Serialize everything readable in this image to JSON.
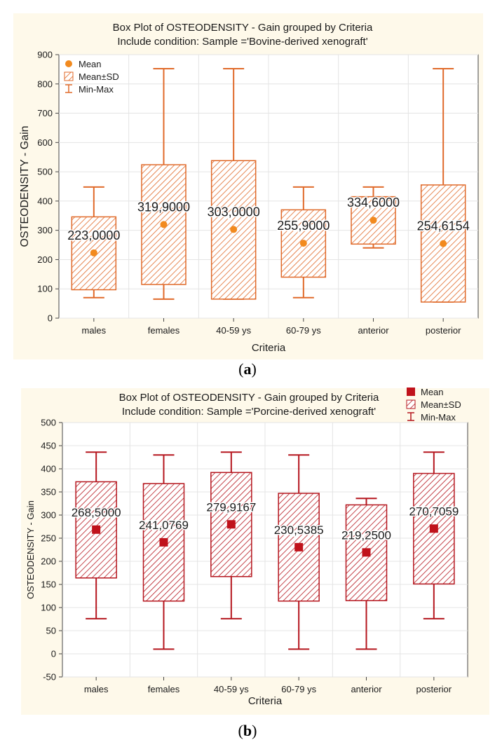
{
  "captions": {
    "a_open": "(",
    "a_letter": "a",
    "a_close": ")",
    "b_open": "(",
    "b_letter": "b",
    "b_close": ")"
  },
  "chart_data": [
    {
      "type": "box",
      "title": "Box Plot of OSTEODENSITY - Gain grouped by  Criteria",
      "subtitle": "Include condition: Sample ='Bovine-derived xenograft'",
      "xlabel": "Criteria",
      "ylabel": "OSTEODENSITY - Gain",
      "ylim": [
        0,
        900
      ],
      "yticks": [
        "0",
        "100",
        "200",
        "300",
        "400",
        "500",
        "600",
        "700",
        "800",
        "900"
      ],
      "ytick_values": [
        0,
        100,
        200,
        300,
        400,
        500,
        600,
        700,
        800,
        900
      ],
      "categories": [
        "males",
        "females",
        "40-59 ys",
        "60-79 ys",
        "anterior",
        "posterior"
      ],
      "mean": [
        223.0,
        319.9,
        303.0,
        255.9,
        334.6,
        254.6154
      ],
      "mean_labels": [
        "223,0000",
        "319,9000",
        "303,0000",
        "255,9000",
        "334,6000",
        "254,6154"
      ],
      "sd_low": [
        97,
        115,
        65,
        140,
        253,
        55
      ],
      "sd_high": [
        346,
        524,
        538,
        370,
        415,
        455
      ],
      "min": [
        70,
        65,
        65,
        70,
        240,
        55
      ],
      "max": [
        448,
        852,
        852,
        448,
        448,
        852
      ],
      "legend": [
        "Mean",
        "Mean±SD",
        "Min-Max"
      ],
      "legend_position": "top-left",
      "colors": {
        "stroke": "#e06a2a",
        "fill": "#f7d3b8",
        "mean": "#f28a1e",
        "background": "#fef9ea"
      },
      "mean_marker": "circle"
    },
    {
      "type": "box",
      "title": "Box Plot of OSTEODENSITY - Gain grouped by  Criteria",
      "subtitle": "Include condition: Sample ='Porcine-derived xenograft'",
      "xlabel": "Criteria",
      "ylabel": "OSTEODENSITY - Gain",
      "ylim": [
        -50,
        500
      ],
      "yticks": [
        "-50",
        "0",
        "50",
        "100",
        "150",
        "200",
        "250",
        "300",
        "350",
        "400",
        "450",
        "500"
      ],
      "ytick_values": [
        -50,
        0,
        50,
        100,
        150,
        200,
        250,
        300,
        350,
        400,
        450,
        500
      ],
      "categories": [
        "males",
        "females",
        "40-59 ys",
        "60-79 ys",
        "anterior",
        "posterior"
      ],
      "mean": [
        268.5,
        241.0769,
        279.9167,
        230.5385,
        219.25,
        270.7059
      ],
      "mean_labels": [
        "268,5000",
        "241,0769",
        "279,9167",
        "230,5385",
        "219,2500",
        "270,7059"
      ],
      "sd_low": [
        164,
        114,
        167,
        114,
        115,
        151
      ],
      "sd_high": [
        372,
        368,
        392,
        347,
        322,
        390
      ],
      "min": [
        76,
        10,
        76,
        10,
        10,
        76
      ],
      "max": [
        436,
        430,
        436,
        430,
        336,
        436
      ],
      "legend": [
        "Mean",
        "Mean±SD",
        "Min-Max"
      ],
      "legend_position": "top-right",
      "colors": {
        "stroke": "#b5161e",
        "fill": "#f3c9c9",
        "mean": "#c0121b",
        "background": "#fef9ea"
      },
      "mean_marker": "square"
    }
  ]
}
